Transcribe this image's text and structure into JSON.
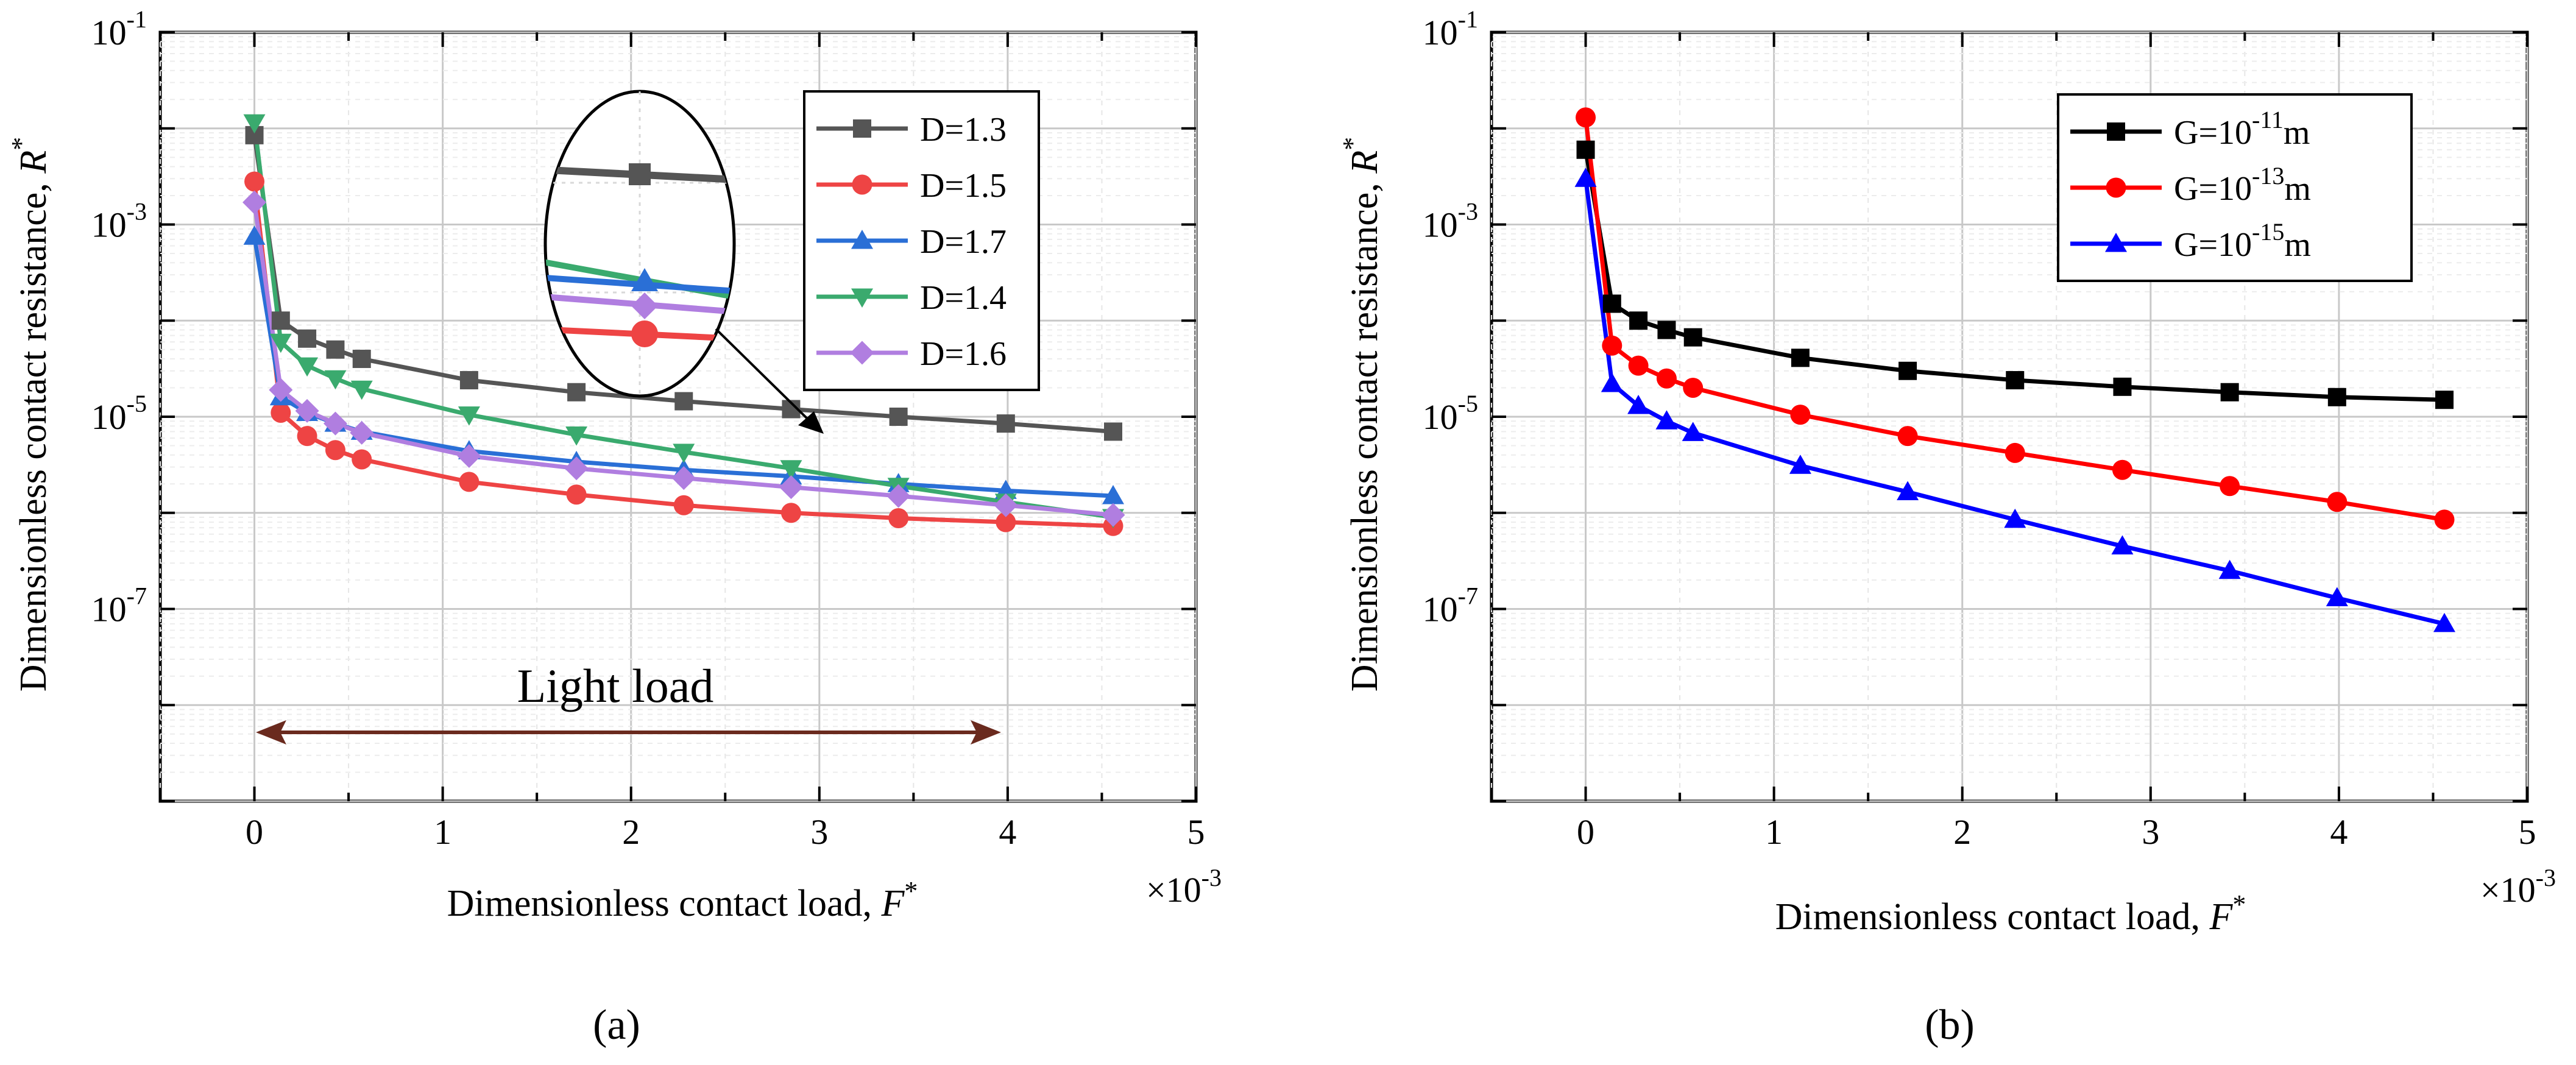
{
  "chart_data": [
    {
      "panel_label": "(a)",
      "type": "line",
      "xlabel": "Dimensionless contact load, F*",
      "xlabel_main": "Dimensionless contact load, ",
      "xlabel_sym": "F",
      "xlabel_sup": "*",
      "ylabel": "Dimensionless contact resistance, R*",
      "ylabel_main": "Dimensionless contact resistance, ",
      "ylabel_sym": "R",
      "ylabel_sup": "*",
      "x_multiplier": "×10-3",
      "x_mult_main": "×10",
      "x_mult_sup": "-3",
      "xlim": [
        -0.5,
        5
      ],
      "x_ticks": [
        0,
        1,
        2,
        3,
        4,
        5
      ],
      "x_tick_labels": [
        "0",
        "1",
        "2",
        "3",
        "4",
        "5"
      ],
      "ylim_log10": [
        -9,
        -1
      ],
      "y_ticks": [
        {
          "exp": -1,
          "base": "10",
          "sup": "-1"
        },
        {
          "exp": -3,
          "base": "10",
          "sup": "-3"
        },
        {
          "exp": -5,
          "base": "10",
          "sup": "-5"
        },
        {
          "exp": -7,
          "base": "10",
          "sup": "-7"
        }
      ],
      "y_scale": "log",
      "grid": true,
      "legend_position": "top-right",
      "annotation": "Light load",
      "x": [
        0,
        0.14,
        0.28,
        0.43,
        0.57,
        1.14,
        1.71,
        2.28,
        2.85,
        3.42,
        3.99,
        4.56
      ],
      "series": [
        {
          "name": "D=1.3",
          "color": "#555555",
          "marker": "square",
          "values": [
            0.0085,
            0.0001,
            6.5e-05,
            5e-05,
            4e-05,
            2.4e-05,
            1.8e-05,
            1.45e-05,
            1.2e-05,
            1e-05,
            8.5e-06,
            7e-06
          ]
        },
        {
          "name": "D=1.5",
          "color": "#ee4444",
          "marker": "circle",
          "values": [
            0.0028,
            1.1e-05,
            6.3e-06,
            4.5e-06,
            3.6e-06,
            2.1e-06,
            1.55e-06,
            1.2e-06,
            1e-06,
            8.8e-07,
            8e-07,
            7.3e-07
          ]
        },
        {
          "name": "D=1.7",
          "color": "#2a6fd6",
          "marker": "triangle-up",
          "values": [
            0.00075,
            1.6e-05,
            1.1e-05,
            8.5e-06,
            7e-06,
            4.4e-06,
            3.4e-06,
            2.8e-06,
            2.4e-06,
            2e-06,
            1.7e-06,
            1.5e-06
          ]
        },
        {
          "name": "D=1.4",
          "color": "#3aaa6e",
          "marker": "triangle-down",
          "values": [
            0.0115,
            6e-05,
            3.4e-05,
            2.5e-05,
            1.95e-05,
            1.05e-05,
            6.5e-06,
            4.3e-06,
            2.9e-06,
            1.9e-06,
            1.3e-06,
            9e-07
          ]
        },
        {
          "name": "D=1.6",
          "color": "#b07ee0",
          "marker": "diamond",
          "values": [
            0.0017,
            1.9e-05,
            1.15e-05,
            8.5e-06,
            6.8e-06,
            3.9e-06,
            2.9e-06,
            2.3e-06,
            1.85e-06,
            1.5e-06,
            1.2e-06,
            9.5e-07
          ]
        }
      ]
    },
    {
      "panel_label": "(b)",
      "type": "line",
      "xlabel": "Dimensionless contact load, F*",
      "xlabel_main": "Dimensionless contact load, ",
      "xlabel_sym": "F",
      "xlabel_sup": "*",
      "ylabel": "Dimensionless contact resistance, R*",
      "ylabel_main": "Dimensionless contact resistance, ",
      "ylabel_sym": "R",
      "ylabel_sup": "*",
      "x_multiplier": "×10-3",
      "x_mult_main": "×10",
      "x_mult_sup": "-3",
      "xlim": [
        -0.5,
        5
      ],
      "x_ticks": [
        0,
        1,
        2,
        3,
        4,
        5
      ],
      "x_tick_labels": [
        "0",
        "1",
        "2",
        "3",
        "4",
        "5"
      ],
      "ylim_log10": [
        -9,
        -1
      ],
      "y_ticks": [
        {
          "exp": -1,
          "base": "10",
          "sup": "-1"
        },
        {
          "exp": -3,
          "base": "10",
          "sup": "-3"
        },
        {
          "exp": -5,
          "base": "10",
          "sup": "-5"
        },
        {
          "exp": -7,
          "base": "10",
          "sup": "-7"
        }
      ],
      "y_scale": "log",
      "grid": true,
      "legend_position": "top-right",
      "x": [
        0,
        0.14,
        0.28,
        0.43,
        0.57,
        1.14,
        1.71,
        2.28,
        2.85,
        3.42,
        3.99,
        4.56
      ],
      "series": [
        {
          "name": "G=10-11m",
          "name_pre": "G=10",
          "name_sup": "-11",
          "name_post": "m",
          "color": "#000000",
          "marker": "square",
          "values": [
            0.006,
            0.00015,
            0.0001,
            8e-05,
            6.7e-05,
            4.1e-05,
            3e-05,
            2.4e-05,
            2.05e-05,
            1.8e-05,
            1.6e-05,
            1.5e-05
          ]
        },
        {
          "name": "G=10-13m",
          "name_pre": "G=10",
          "name_sup": "-13",
          "name_post": "m",
          "color": "#ff0000",
          "marker": "circle",
          "values": [
            0.013,
            5.5e-05,
            3.4e-05,
            2.5e-05,
            2e-05,
            1.05e-05,
            6.3e-06,
            4.2e-06,
            2.8e-06,
            1.9e-06,
            1.3e-06,
            8.5e-07
          ]
        },
        {
          "name": "G=10-15m",
          "name_pre": "G=10",
          "name_sup": "-15",
          "name_post": "m",
          "color": "#0000ff",
          "marker": "triangle-up",
          "values": [
            0.003,
            2.2e-05,
            1.3e-05,
            9e-06,
            6.8e-06,
            3.1e-06,
            1.65e-06,
            8.5e-07,
            4.5e-07,
            2.5e-07,
            1.3e-07,
            7e-08
          ]
        }
      ]
    }
  ]
}
